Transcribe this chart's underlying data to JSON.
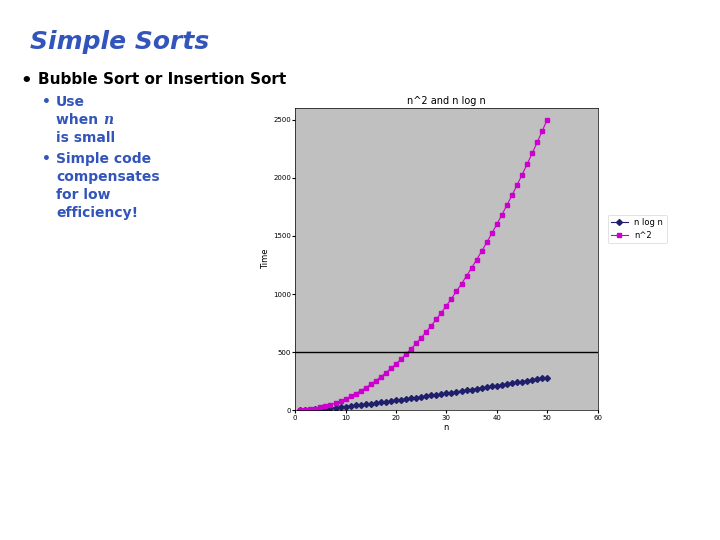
{
  "title": "Simple Sorts",
  "bullet1": "Bubble Sort or Insertion Sort",
  "sub_bullet1_lines": [
    "Use",
    "when ",
    "n",
    "is small"
  ],
  "sub_bullet2_lines": [
    "Simple code",
    "compensates",
    "for low",
    "efficiency!"
  ],
  "chart_title": "n^2 and n log n",
  "xlabel": "n",
  "ylabel": "Time",
  "n_max": 50,
  "x_ticks": [
    0,
    10,
    20,
    30,
    40,
    50,
    60
  ],
  "y_ticks": [
    0,
    500,
    1000,
    1500,
    2000,
    2500
  ],
  "y_max": 2600,
  "x_max": 60,
  "legend_nlogn": "n log n",
  "legend_n2": "n^2",
  "color_nlogn": "#1F1F6B",
  "color_n2": "#CC00CC",
  "bg_color": "#C0C0C0",
  "title_color": "#3355BB",
  "bullet_color": "#000000",
  "sub_bullet_color": "#3355BB",
  "hline_y": 500,
  "marker_size": 3,
  "title_fontsize": 18,
  "bullet_fontsize": 11,
  "sub_bullet_fontsize": 10,
  "chart_title_fontsize": 7,
  "chart_label_fontsize": 6,
  "chart_tick_fontsize": 5,
  "legend_fontsize": 6
}
